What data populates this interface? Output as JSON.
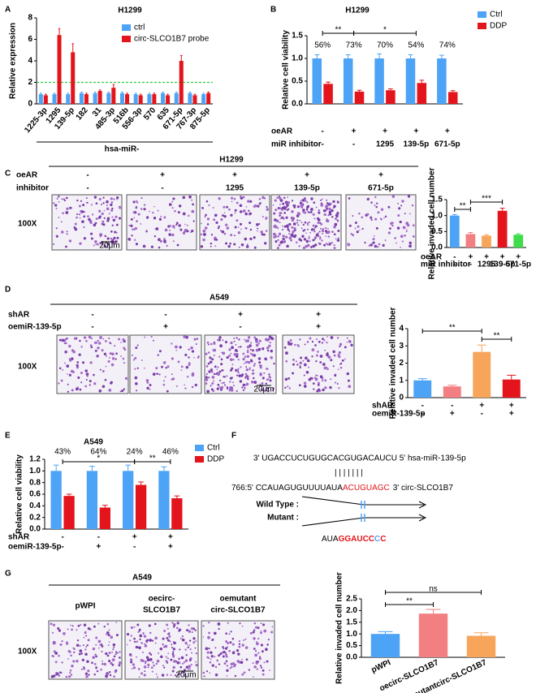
{
  "panel_labels": [
    "A",
    "B",
    "C",
    "D",
    "E",
    "F",
    "G"
  ],
  "chart_data": [
    {
      "type": "bar",
      "title": "H1299",
      "y_label": "Relative expression",
      "x_label": "hsa-miR-",
      "categories": [
        "1225-3p",
        "1295",
        "139-5p",
        "182",
        "31",
        "485-3p",
        "516b",
        "556-3p",
        "570",
        "635",
        "671-5p",
        "767-3p",
        "875-5p"
      ],
      "series": [
        {
          "name": "ctrl",
          "color": "#4da3f5",
          "values": [
            0.9,
            0.9,
            0.9,
            1.0,
            1.0,
            1.0,
            1.0,
            0.9,
            0.9,
            1.0,
            1.0,
            1.0,
            0.9
          ],
          "errors": [
            0.1,
            0.1,
            0.1,
            0.1,
            0.1,
            0.1,
            0.1,
            0.1,
            0.1,
            0.1,
            0.1,
            0.1,
            0.1
          ]
        },
        {
          "name": "circ-SLCO1B7 probe",
          "color": "#e3141b",
          "values": [
            0.8,
            6.4,
            4.8,
            0.9,
            1.2,
            1.5,
            0.9,
            0.8,
            0.9,
            0.8,
            4.0,
            0.8,
            1.0
          ],
          "errors": [
            0.1,
            0.6,
            0.8,
            0.1,
            0.1,
            0.3,
            0.1,
            0.1,
            0.1,
            0.1,
            0.5,
            0.1,
            0.1
          ]
        }
      ],
      "ylim": [
        0,
        8
      ],
      "yticks": [
        0,
        2,
        4,
        6,
        8
      ],
      "reference_line": {
        "value": 2,
        "color": "#2ecc40"
      },
      "legend": "top"
    },
    {
      "type": "bar",
      "title": "H1299",
      "y_label": "Relative cell viability",
      "series": [
        {
          "name": "Ctrl",
          "color": "#4da3f5",
          "values": [
            1,
            1,
            1,
            1,
            1
          ],
          "errors": [
            0.08,
            0.08,
            0.1,
            0.08,
            0.07
          ]
        },
        {
          "name": "DDP",
          "color": "#e3141b",
          "values": [
            0.44,
            0.27,
            0.3,
            0.46,
            0.26
          ],
          "errors": [
            0.04,
            0.03,
            0.03,
            0.06,
            0.03
          ]
        }
      ],
      "ylim": [
        0,
        1.5
      ],
      "yticks": [
        {
          "value": 0,
          "label": "0.0"
        },
        0.5,
        {
          "value": 1,
          "label": "1.0"
        },
        1.5
      ],
      "percent_labels": [
        "56%",
        "73%",
        "70%",
        "54%",
        "74%"
      ],
      "significance": [
        "**",
        "*"
      ],
      "conditions": [
        {
          "label": "oeAR",
          "values": [
            "-",
            "+",
            "+",
            "+",
            "+"
          ]
        },
        {
          "label": "miR inhibitor",
          "values": [
            "-",
            "-",
            "1295",
            "139-5p",
            "671-5p"
          ]
        }
      ],
      "legend": "top-right"
    },
    {
      "type": "bar",
      "y_label": "Relative invaded cell number",
      "values": [
        1.0,
        0.42,
        0.37,
        1.15,
        0.4
      ],
      "errors": [
        0.03,
        0.05,
        0.03,
        0.08,
        0.03
      ],
      "colors": [
        "#4da3f5",
        "#f27f82",
        "#f6a55b",
        "#e3141b",
        "#3fdd4b"
      ],
      "ylim": [
        0,
        1.5
      ],
      "yticks": [
        {
          "value": 0,
          "label": "0.0"
        },
        0.5,
        {
          "value": 1,
          "label": "1.0"
        },
        1.5
      ],
      "significance": [
        "**",
        "***"
      ],
      "conditions": [
        {
          "label": "oeAR",
          "values": [
            "-",
            "+",
            "+",
            "+",
            "+"
          ]
        },
        {
          "label": "miR inhibitor",
          "values": [
            "-",
            "-",
            "1295",
            "139-5p",
            "671-5p"
          ]
        }
      ]
    },
    {
      "type": "bar",
      "y_label": "Relative invaded cell number",
      "values": [
        1.0,
        0.65,
        2.65,
        1.05
      ],
      "errors": [
        0.1,
        0.07,
        0.4,
        0.25
      ],
      "colors": [
        "#4da3f5",
        "#f27f82",
        "#f6a55b",
        "#e3141b"
      ],
      "ylim": [
        0,
        4
      ],
      "yticks": [
        0,
        1,
        2,
        3,
        4
      ],
      "significance": [
        "**",
        "**"
      ],
      "conditions": [
        {
          "label": "shAR",
          "values": [
            "-",
            "-",
            "+",
            "+"
          ]
        },
        {
          "label": "oemiR-139-5p",
          "values": [
            "-",
            "+",
            "-",
            "+"
          ]
        }
      ]
    },
    {
      "type": "bar",
      "title": "A549",
      "y_label": "Relative cell viability",
      "series": [
        {
          "name": "Ctrl",
          "color": "#4da3f5",
          "values": [
            1,
            1,
            1,
            1
          ],
          "errors": [
            0.1,
            0.08,
            0.1,
            0.07
          ]
        },
        {
          "name": "DDP",
          "color": "#e3141b",
          "values": [
            0.57,
            0.37,
            0.76,
            0.53
          ],
          "errors": [
            0.03,
            0.04,
            0.05,
            0.04
          ]
        }
      ],
      "ylim": [
        0,
        1.2
      ],
      "yticks": [
        {
          "value": 0,
          "label": "0.0"
        },
        0.2,
        0.4,
        0.6,
        0.8,
        {
          "value": 1,
          "label": "1.0"
        },
        1.2
      ],
      "percent_labels": [
        "43%",
        "64%",
        "24%",
        "46%"
      ],
      "significance": [
        "*",
        "**"
      ],
      "conditions": [
        {
          "label": "shAR",
          "values": [
            "-",
            "-",
            "+",
            "+"
          ]
        },
        {
          "label": "oemiR-139-5p",
          "values": [
            "-",
            "+",
            "-",
            "+"
          ]
        }
      ],
      "legend": "top-right"
    },
    {
      "type": "bar",
      "y_label": "Relative invaded cell number",
      "categories": [
        "pWPI",
        "oecirc-SLCO1B7",
        "oemutantcirc-SLCO1B7"
      ],
      "values": [
        1.0,
        1.87,
        0.92
      ],
      "errors": [
        0.1,
        0.18,
        0.13
      ],
      "colors": [
        "#4da3f5",
        "#f27f82",
        "#f6a55b"
      ],
      "ylim": [
        0,
        2.5
      ],
      "yticks": [
        {
          "value": 0,
          "label": "0.0"
        },
        0.5,
        {
          "value": 1,
          "label": "1.0"
        },
        1.5,
        {
          "value": 2,
          "label": "2.0"
        },
        2.5
      ],
      "significance": [
        "**",
        "ns"
      ]
    }
  ],
  "panel_C": {
    "header": "H1299",
    "rows": [
      {
        "label": "oeAR",
        "values": [
          "-",
          "+",
          "+",
          "+",
          "+"
        ]
      },
      {
        "label": "inhibitor",
        "values": [
          "-",
          "-",
          "1295",
          "139-5p",
          "671-5p"
        ]
      }
    ],
    "magnification": "100X",
    "scale_bar": "20μm"
  },
  "panel_D": {
    "header": "A549",
    "rows": [
      {
        "label": "shAR",
        "values": [
          "-",
          "-",
          "+",
          "+"
        ]
      },
      {
        "label": "oemiR-139-5p",
        "values": [
          "-",
          "+",
          "-",
          "+"
        ]
      }
    ],
    "magnification": "100X",
    "scale_bar": "20μm"
  },
  "panel_F": {
    "mirna": "3' UGACCUCUGUGCACGUGACAUCU 5' hsa-miR-139-5p",
    "pairing": "| | | | | | |",
    "circ": {
      "prefix": "766:5' CCAUAGUGUUUUAUA",
      "site": "ACUGUAGC",
      "suffix": "3' circ-SLCO1B7"
    },
    "wild_type": "Wild Type :",
    "mutant": "Mutant :",
    "mutant_seq": [
      "AUA",
      "GGAUCC",
      "C",
      "C"
    ]
  },
  "panel_G": {
    "header": "A549",
    "columns": [
      [
        "pWPI"
      ],
      [
        "oecirc-",
        "SLCO1B7"
      ],
      [
        "oemutant",
        "circ-SLCO1B7"
      ]
    ],
    "magnification": "100X",
    "scale_bar": "20μm"
  }
}
